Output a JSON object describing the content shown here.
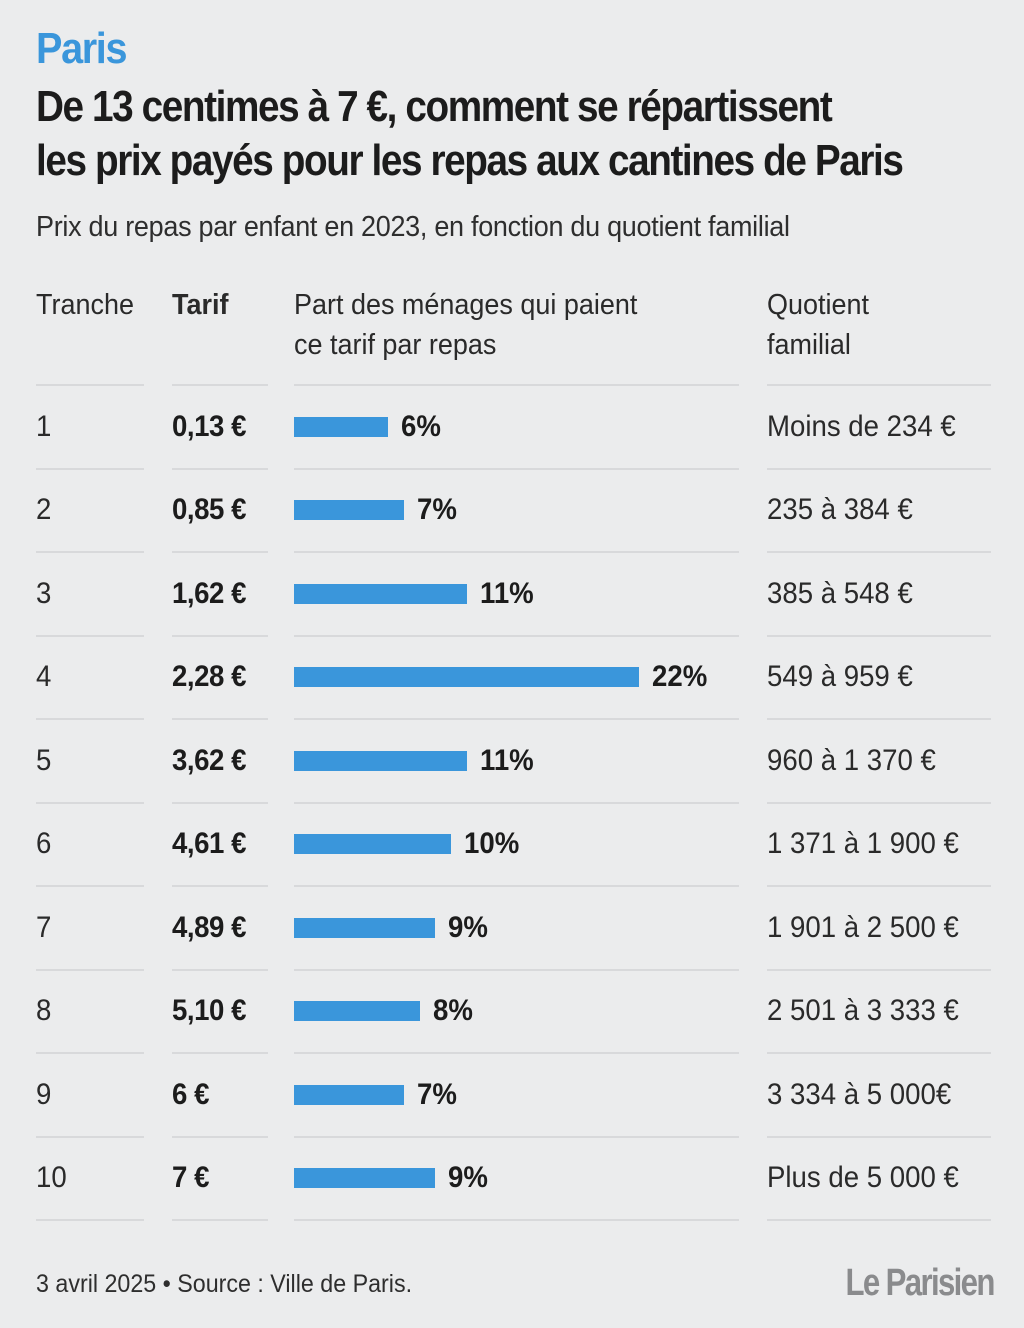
{
  "header": {
    "kicker": "Paris",
    "title_line1": "De 13 centimes à 7 €, comment se répartissent",
    "title_line2": "les prix payés pour les repas aux cantines de Paris",
    "subtitle": "Prix du repas par enfant en 2023, en fonction du quotient familial"
  },
  "columns": {
    "tranche": "Tranche",
    "tarif": "Tarif",
    "part_line1": "Part des ménages qui paient",
    "part_line2": "ce tarif par repas",
    "quotient_line1": "Quotient",
    "quotient_line2": "familial"
  },
  "chart_data": {
    "type": "bar",
    "orientation": "horizontal",
    "title": "De 13 centimes à 7 €, comment se répartissent les prix payés pour les repas aux cantines de Paris",
    "subtitle": "Prix du repas par enfant en 2023, en fonction du quotient familial",
    "value_unit": "%",
    "grid": false,
    "rows": [
      {
        "tranche": "1",
        "tarif": "0,13 €",
        "pct": 6,
        "pct_label": "6%",
        "quotient": "Moins de 234 €"
      },
      {
        "tranche": "2",
        "tarif": "0,85 €",
        "pct": 7,
        "pct_label": "7%",
        "quotient": "235 à 384 €"
      },
      {
        "tranche": "3",
        "tarif": "1,62 €",
        "pct": 11,
        "pct_label": "11%",
        "quotient": "385 à 548 €"
      },
      {
        "tranche": "4",
        "tarif": "2,28 €",
        "pct": 22,
        "pct_label": "22%",
        "quotient": "549 à 959 €"
      },
      {
        "tranche": "5",
        "tarif": "3,62 €",
        "pct": 11,
        "pct_label": "11%",
        "quotient": "960 à 1 370 €"
      },
      {
        "tranche": "6",
        "tarif": "4,61 €",
        "pct": 10,
        "pct_label": "10%",
        "quotient": "1 371 à 1 900 €"
      },
      {
        "tranche": "7",
        "tarif": "4,89 €",
        "pct": 9,
        "pct_label": "9%",
        "quotient": "1 901 à 2 500 €"
      },
      {
        "tranche": "8",
        "tarif": "5,10 €",
        "pct": 8,
        "pct_label": "8%",
        "quotient": "2 501 à 3 333 €"
      },
      {
        "tranche": "9",
        "tarif": "6 €",
        "pct": 7,
        "pct_label": "7%",
        "quotient": "3 334 à 5 000€"
      },
      {
        "tranche": "10",
        "tarif": "7 €",
        "pct": 9,
        "pct_label": "9%",
        "quotient": "Plus de 5 000 €"
      }
    ]
  },
  "footer": {
    "source": "3 avril 2025 • Source : Ville de Paris.",
    "logo": "Le Parisien"
  },
  "colors": {
    "accent": "#3a96db",
    "background": "#ebeced",
    "rule": "#d8d9db"
  }
}
